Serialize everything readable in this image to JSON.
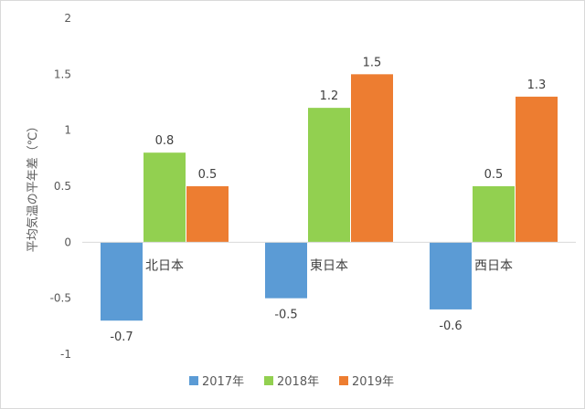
{
  "chart_data": {
    "type": "bar",
    "categories": [
      "北日本",
      "東日本",
      "西日本"
    ],
    "series": [
      {
        "name": "2017年",
        "values": [
          -0.7,
          -0.5,
          -0.6
        ],
        "labels": [
          "-0.7",
          "-0.5",
          "-0.6"
        ],
        "color": "#5b9bd5"
      },
      {
        "name": "2018年",
        "values": [
          0.8,
          1.2,
          0.5
        ],
        "labels": [
          "0.8",
          "1.2",
          "0.5"
        ],
        "color": "#92d050"
      },
      {
        "name": "2019年",
        "values": [
          0.5,
          1.5,
          1.3
        ],
        "labels": [
          "0.5",
          "1.5",
          "1.3"
        ],
        "color": "#ed7d31"
      }
    ],
    "ylabel": "平均気温の平年差（℃）",
    "ylim": [
      -1,
      2
    ],
    "yticks": [
      "-1",
      "-0.5",
      "0",
      "0.5",
      "1",
      "1.5",
      "2"
    ],
    "grid": false,
    "legend": "bottom"
  }
}
